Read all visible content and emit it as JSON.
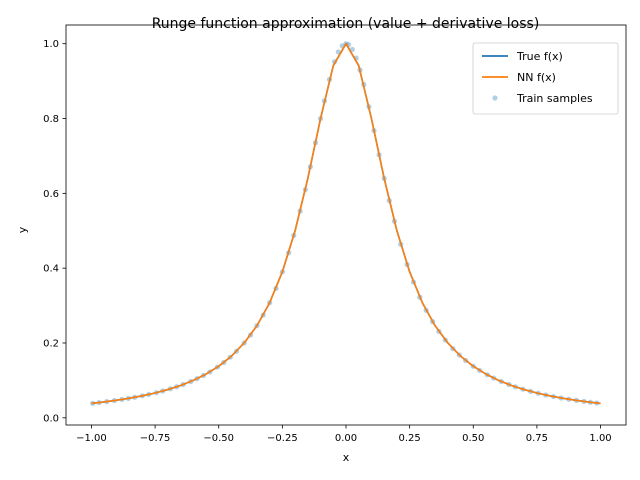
{
  "chart_data": {
    "type": "line",
    "title": "Runge function approximation (value + derivative loss)",
    "xlabel": "x",
    "ylabel": "y",
    "xlim": [
      -1.1,
      1.1
    ],
    "ylim": [
      -0.0192,
      1.05
    ],
    "grid": false,
    "legend_position": "top-right",
    "xticks": [
      -1.0,
      -0.75,
      -0.5,
      -0.25,
      0.0,
      0.25,
      0.5,
      0.75,
      1.0
    ],
    "xtick_labels": [
      "−1.00",
      "−0.75",
      "−0.50",
      "−0.25",
      "0.00",
      "0.25",
      "0.50",
      "0.75",
      "1.00"
    ],
    "yticks": [
      0.0,
      0.2,
      0.4,
      0.6,
      0.8,
      1.0
    ],
    "ytick_labels": [
      "0.0",
      "0.2",
      "0.4",
      "0.6",
      "0.8",
      "1.0"
    ],
    "series": [
      {
        "name": "True f(x)",
        "kind": "line",
        "color": "#1f77b4",
        "x": [
          -1.0,
          -0.95,
          -0.9,
          -0.85,
          -0.8,
          -0.75,
          -0.7,
          -0.65,
          -0.6,
          -0.55,
          -0.5,
          -0.45,
          -0.4,
          -0.35,
          -0.3,
          -0.25,
          -0.2,
          -0.15,
          -0.1,
          -0.05,
          0.0,
          0.05,
          0.1,
          0.15,
          0.2,
          0.25,
          0.3,
          0.35,
          0.4,
          0.45,
          0.5,
          0.55,
          0.6,
          0.65,
          0.7,
          0.75,
          0.8,
          0.85,
          0.9,
          0.95,
          1.0
        ],
        "y": [
          0.0385,
          0.0424,
          0.0471,
          0.0525,
          0.0588,
          0.0664,
          0.0755,
          0.0865,
          0.1,
          0.1168,
          0.1379,
          0.1649,
          0.2,
          0.2462,
          0.3077,
          0.3902,
          0.5,
          0.64,
          0.8,
          0.9412,
          1.0,
          0.9412,
          0.8,
          0.64,
          0.5,
          0.3902,
          0.3077,
          0.2462,
          0.2,
          0.1649,
          0.1379,
          0.1168,
          0.1,
          0.0865,
          0.0755,
          0.0664,
          0.0588,
          0.0525,
          0.0471,
          0.0424,
          0.0385
        ]
      },
      {
        "name": "NN f(x)",
        "kind": "line",
        "color": "#ff7f0e",
        "x": [
          -1.0,
          -0.95,
          -0.9,
          -0.85,
          -0.8,
          -0.75,
          -0.7,
          -0.65,
          -0.6,
          -0.55,
          -0.5,
          -0.45,
          -0.4,
          -0.35,
          -0.3,
          -0.25,
          -0.2,
          -0.15,
          -0.1,
          -0.05,
          0.0,
          0.05,
          0.1,
          0.15,
          0.2,
          0.25,
          0.3,
          0.35,
          0.4,
          0.45,
          0.5,
          0.55,
          0.6,
          0.65,
          0.7,
          0.75,
          0.8,
          0.85,
          0.9,
          0.95,
          1.0
        ],
        "y": [
          0.0385,
          0.0424,
          0.0471,
          0.0525,
          0.0588,
          0.0664,
          0.0755,
          0.0865,
          0.1,
          0.1168,
          0.1379,
          0.1649,
          0.2,
          0.2462,
          0.3077,
          0.3902,
          0.5,
          0.64,
          0.8,
          0.9412,
          1.0,
          0.9412,
          0.8,
          0.64,
          0.5,
          0.3902,
          0.3077,
          0.2462,
          0.2,
          0.1649,
          0.1379,
          0.1168,
          0.1,
          0.0865,
          0.0755,
          0.0664,
          0.0588,
          0.0525,
          0.0471,
          0.0424,
          0.0385
        ]
      },
      {
        "name": "Train samples",
        "kind": "scatter",
        "color": "#1f77b4",
        "opacity": 0.35,
        "x": [
          -0.995,
          -0.97,
          -0.94,
          -0.91,
          -0.88,
          -0.855,
          -0.83,
          -0.8,
          -0.775,
          -0.745,
          -0.72,
          -0.69,
          -0.665,
          -0.64,
          -0.61,
          -0.585,
          -0.56,
          -0.535,
          -0.505,
          -0.48,
          -0.455,
          -0.43,
          -0.4,
          -0.375,
          -0.35,
          -0.325,
          -0.3,
          -0.275,
          -0.25,
          -0.225,
          -0.205,
          -0.18,
          -0.16,
          -0.14,
          -0.12,
          -0.1,
          -0.085,
          -0.065,
          -0.045,
          -0.03,
          -0.015,
          0.0,
          0.01,
          0.025,
          0.04,
          0.055,
          0.07,
          0.09,
          0.11,
          0.13,
          0.15,
          0.17,
          0.19,
          0.215,
          0.24,
          0.265,
          0.29,
          0.315,
          0.34,
          0.365,
          0.39,
          0.42,
          0.445,
          0.47,
          0.5,
          0.525,
          0.555,
          0.58,
          0.61,
          0.64,
          0.665,
          0.695,
          0.725,
          0.755,
          0.785,
          0.815,
          0.845,
          0.875,
          0.905,
          0.935,
          0.96,
          0.985
        ],
        "y": [
          0.0388,
          0.0408,
          0.0433,
          0.0461,
          0.0491,
          0.0519,
          0.0549,
          0.0588,
          0.0624,
          0.0672,
          0.0716,
          0.0775,
          0.083,
          0.089,
          0.0971,
          0.1047,
          0.1131,
          0.1226,
          0.1356,
          0.1479,
          0.1621,
          0.1779,
          0.2,
          0.2214,
          0.2462,
          0.2747,
          0.3077,
          0.3459,
          0.3902,
          0.4414,
          0.4876,
          0.5525,
          0.6098,
          0.6711,
          0.7353,
          0.8,
          0.8471,
          0.9045,
          0.9518,
          0.978,
          0.9944,
          1.0,
          0.9975,
          0.9846,
          0.9615,
          0.9297,
          0.8909,
          0.8316,
          0.7678,
          0.703,
          0.64,
          0.5806,
          0.5256,
          0.4639,
          0.4098,
          0.3629,
          0.3223,
          0.2873,
          0.2571,
          0.2309,
          0.2082,
          0.1848,
          0.168,
          0.1533,
          0.1379,
          0.1267,
          0.1149,
          0.1063,
          0.0971,
          0.089,
          0.0829,
          0.0765,
          0.0707,
          0.0656,
          0.0609,
          0.0568,
          0.053,
          0.0497,
          0.0466,
          0.0438,
          0.0416,
          0.0396
        ]
      }
    ]
  }
}
